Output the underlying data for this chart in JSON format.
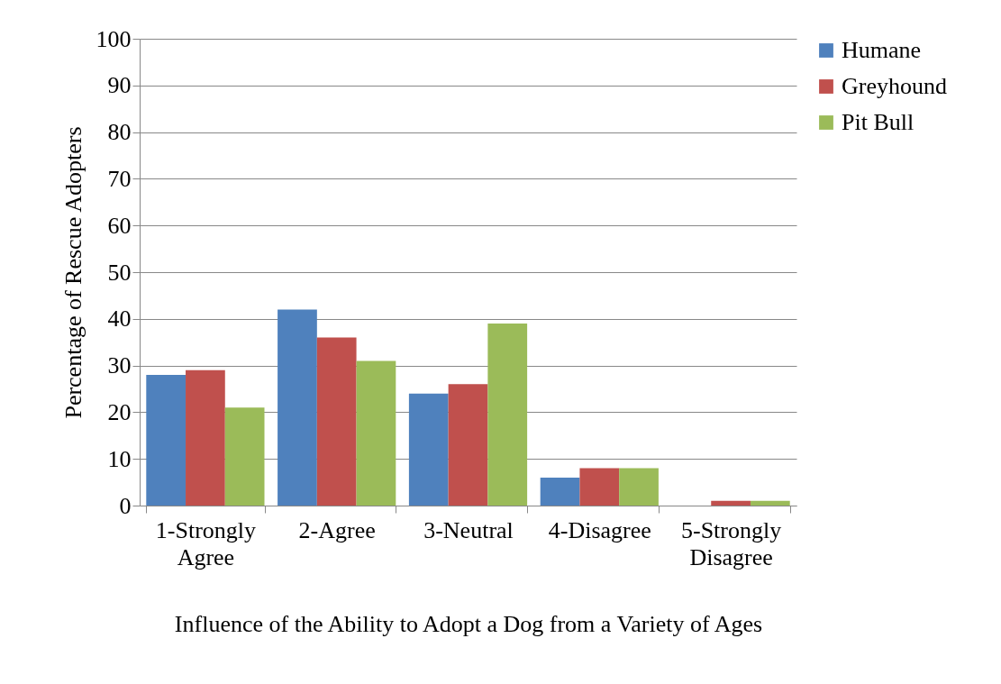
{
  "chart_data": {
    "type": "bar",
    "xlabel": "Influence of the Ability to Adopt a Dog from a Variety of Ages",
    "ylabel": "Percentage of Rescue Adopters",
    "categories": [
      "1-Strongly Agree",
      "2-Agree",
      "3-Neutral",
      "4-Disagree",
      "5-Strongly Disagree"
    ],
    "series": [
      {
        "name": "Humane",
        "color": "#4f81bd",
        "values": [
          28,
          42,
          24,
          6,
          0
        ]
      },
      {
        "name": "Greyhound",
        "color": "#c0504d",
        "values": [
          29,
          36,
          26,
          8,
          1
        ]
      },
      {
        "name": "Pit Bull",
        "color": "#9bbb59",
        "values": [
          21,
          31,
          39,
          8,
          1
        ]
      }
    ],
    "ylim": [
      0,
      100
    ],
    "yticks": [
      0,
      10,
      20,
      30,
      40,
      50,
      60,
      70,
      80,
      90,
      100
    ],
    "grid": "y",
    "legend": "right"
  }
}
